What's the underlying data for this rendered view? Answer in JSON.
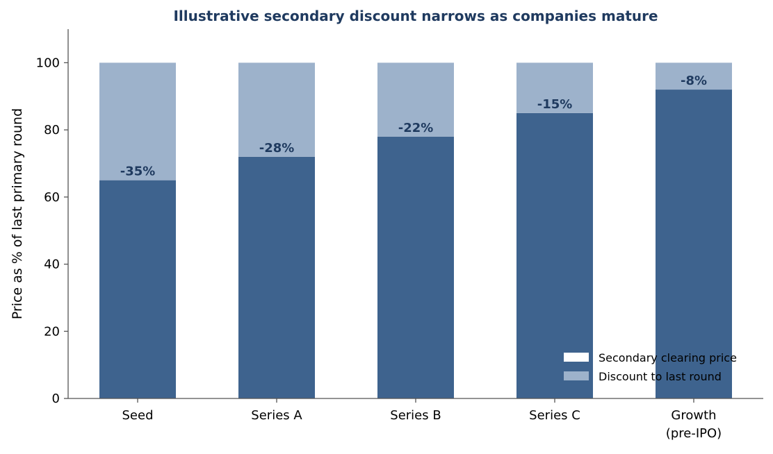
{
  "chart_data": {
    "type": "bar",
    "stacked": true,
    "title": "Illustrative secondary discount narrows as companies mature",
    "xlabel": "",
    "ylabel": "Price as % of last primary round",
    "ylim": [
      0,
      110
    ],
    "yticks": [
      0,
      20,
      40,
      60,
      80,
      100
    ],
    "categories": [
      [
        "Seed"
      ],
      [
        "Series A"
      ],
      [
        "Series B"
      ],
      [
        "Series C"
      ],
      [
        "Growth",
        "(pre-IPO)"
      ]
    ],
    "series": [
      {
        "name": "Secondary clearing price",
        "values": [
          65,
          72,
          78,
          85,
          92
        ],
        "color": "#3e638e"
      },
      {
        "name": "Discount to last round",
        "values": [
          35,
          28,
          22,
          15,
          8
        ],
        "color": "#9db2cb"
      }
    ],
    "data_labels": [
      "-35%",
      "-28%",
      "-22%",
      "-15%",
      "-8%"
    ],
    "legend_position": "lower-right",
    "grid": false,
    "title_color": "#1f3a5f",
    "label_color": "#1f3a5f"
  }
}
